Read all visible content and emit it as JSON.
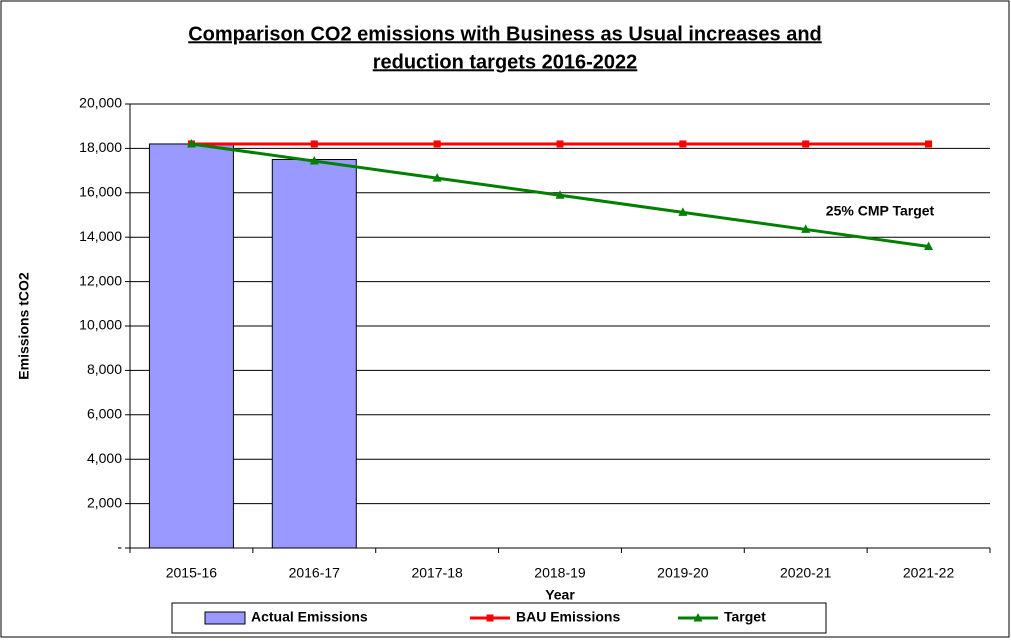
{
  "chart_data": {
    "type": "bar",
    "title": [
      "Comparison CO2 emissions with Business as Usual increases and",
      "reduction targets 2016-2022"
    ],
    "y_label": "Emissions tCO2",
    "x_label": "Year",
    "annotation": "25% CMP Target",
    "categories": [
      "2015-16",
      "2016-17",
      "2017-18",
      "2018-19",
      "2019-20",
      "2020-21",
      "2021-22"
    ],
    "series": [
      {
        "name": "Actual Emissions",
        "type": "bar",
        "color": "#9999ff",
        "values": [
          18200,
          17500,
          null,
          null,
          null,
          null,
          null
        ]
      },
      {
        "name": "BAU Emissions",
        "type": "line",
        "marker": "square",
        "color": "#ff0000",
        "values": [
          18200,
          18200,
          18200,
          18200,
          18200,
          18200,
          18200
        ]
      },
      {
        "name": "Target",
        "type": "line",
        "marker": "triangle",
        "color": "#008000",
        "values": [
          18200,
          17430,
          16660,
          15890,
          15120,
          14350,
          13580
        ]
      }
    ],
    "ylim": [
      0,
      20000
    ],
    "yticks": [
      {
        "value": 0,
        "label": "-"
      },
      {
        "value": 2000,
        "label": "2,000"
      },
      {
        "value": 4000,
        "label": "4,000"
      },
      {
        "value": 6000,
        "label": "6,000"
      },
      {
        "value": 8000,
        "label": "8,000"
      },
      {
        "value": 10000,
        "label": "10,000"
      },
      {
        "value": 12000,
        "label": "12,000"
      },
      {
        "value": 14000,
        "label": "14,000"
      },
      {
        "value": 16000,
        "label": "16,000"
      },
      {
        "value": 18000,
        "label": "18,000"
      },
      {
        "value": 20000,
        "label": "20,000"
      }
    ],
    "grid": true
  }
}
